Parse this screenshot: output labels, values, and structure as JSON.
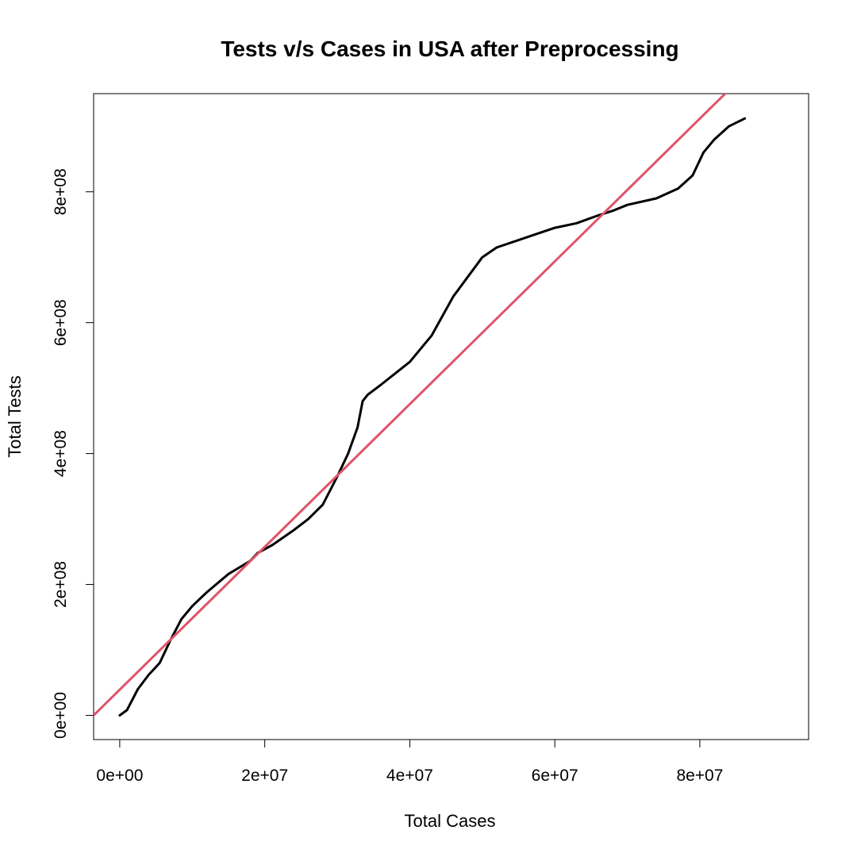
{
  "chart_data": {
    "type": "line",
    "title": "Tests v/s Cases in USA after Preprocessing",
    "xlabel": "Total Cases",
    "ylabel": "Total Tests",
    "xlim": [
      -3600000,
      95000000
    ],
    "ylim": [
      -37000000,
      950000000
    ],
    "x_ticks": [
      0,
      20000000,
      40000000,
      60000000,
      80000000
    ],
    "x_tick_labels": [
      "0e+00",
      "2e+07",
      "4e+07",
      "6e+07",
      "8e+07"
    ],
    "y_ticks": [
      0,
      200000000,
      400000000,
      600000000,
      800000000
    ],
    "y_tick_labels": [
      "0e+00",
      "2e+08",
      "4e+08",
      "6e+08",
      "8e+08"
    ],
    "grid": false,
    "series": [
      {
        "color": "#000000",
        "x": [
          0,
          1000000,
          2500000,
          4000000,
          5500000,
          7000000,
          8500000,
          10000000,
          12000000,
          15000000,
          18000000,
          19000000,
          21000000,
          24000000,
          26000000,
          28000000,
          30000000,
          31500000,
          32800000,
          33500000,
          34200000,
          36000000,
          40000000,
          43000000,
          46000000,
          50000000,
          52000000,
          56000000,
          60000000,
          63000000,
          66000000,
          68000000,
          70000000,
          74000000,
          77000000,
          79000000,
          80500000,
          82000000,
          84000000,
          86200000
        ],
        "y": [
          0,
          8000000,
          40000000,
          62000000,
          80000000,
          115000000,
          147000000,
          167000000,
          188000000,
          216000000,
          236000000,
          248000000,
          260000000,
          283000000,
          300000000,
          322000000,
          365000000,
          400000000,
          440000000,
          480000000,
          490000000,
          505000000,
          540000000,
          580000000,
          640000000,
          700000000,
          715000000,
          730000000,
          745000000,
          752000000,
          764000000,
          771000000,
          780000000,
          790000000,
          805000000,
          825000000,
          860000000,
          880000000,
          900000000,
          912000000
        ]
      },
      {
        "color": "#DF536B",
        "type": "fit-line",
        "x": [
          -3600000,
          83500000
        ],
        "y": [
          0,
          950000000
        ]
      }
    ]
  }
}
